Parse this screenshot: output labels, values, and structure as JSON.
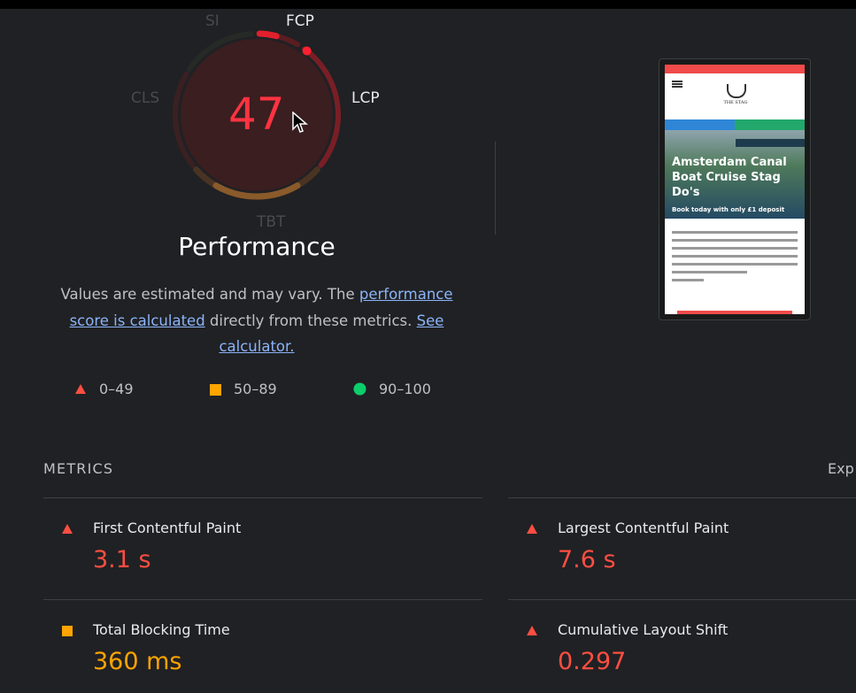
{
  "gauge": {
    "score": "47",
    "labels": {
      "si": "SI",
      "fcp": "FCP",
      "lcp": "LCP",
      "tbt": "TBT",
      "cls": "CLS"
    }
  },
  "category_title": "Performance",
  "description": {
    "pre": "Values are estimated and may vary. The ",
    "link1": "performance score is calculated",
    "mid": " directly from these metrics. ",
    "link2": "See calculator."
  },
  "legend": [
    {
      "icon": "triangle-fail-icon",
      "range": "0–49",
      "color": "#ff4e42"
    },
    {
      "icon": "square-average-icon",
      "range": "50–89",
      "color": "#ffa400"
    },
    {
      "icon": "circle-pass-icon",
      "range": "90–100",
      "color": "#0cce6b"
    }
  ],
  "screenshot": {
    "hero_title": "Amsterdam Canal Boat Cruise Stag Do's",
    "hero_sub": "Book today with only £1 deposit",
    "logo": "THE STAG"
  },
  "metrics": {
    "heading": "METRICS",
    "expand": "Exp",
    "items": [
      {
        "name": "First Contentful Paint",
        "value": "3.1 s",
        "status": "fail",
        "color": "#ff4e42"
      },
      {
        "name": "Largest Contentful Paint",
        "value": "7.6 s",
        "status": "fail",
        "color": "#ff4e42"
      },
      {
        "name": "Total Blocking Time",
        "value": "360 ms",
        "status": "average",
        "color": "#ffa400"
      },
      {
        "name": "Cumulative Layout Shift",
        "value": "0.297",
        "status": "fail",
        "color": "#ff4e42"
      }
    ]
  },
  "colors": {
    "fail": "#ff4e42",
    "average": "#ffa400",
    "pass": "#0cce6b",
    "link": "#8ab4f8"
  }
}
